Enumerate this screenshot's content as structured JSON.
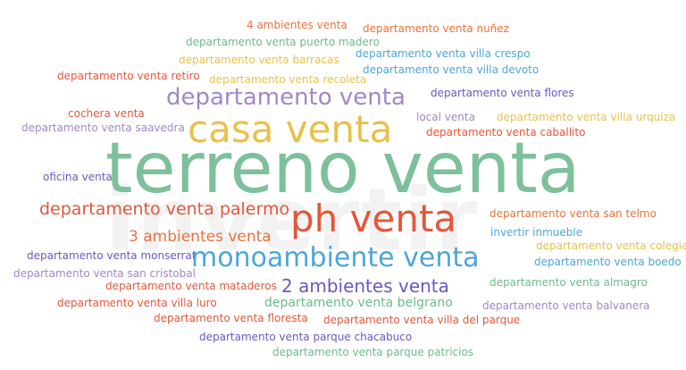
{
  "watermark_text": "invertir",
  "words": [
    {
      "text": "4 ambientes venta",
      "color": "#e8723a"
    },
    {
      "text": "departamento venta nuñez",
      "color": "#e8723a"
    },
    {
      "text": "departamento venta puerto madero",
      "color": "#6dbb8a"
    },
    {
      "text": "departamento venta villa crespo",
      "color": "#4da6d9"
    },
    {
      "text": "departamento venta barracas",
      "color": "#e8c14a"
    },
    {
      "text": "departamento venta villa devoto",
      "color": "#4da6d9"
    },
    {
      "text": "departamento venta retiro",
      "color": "#e3573a"
    },
    {
      "text": "departamento venta recoleta",
      "color": "#e8c14a"
    },
    {
      "text": "departamento venta",
      "color": "#a287c9"
    },
    {
      "text": "departamento venta flores",
      "color": "#6b57c7"
    },
    {
      "text": "cochera venta",
      "color": "#e3573a"
    },
    {
      "text": "casa venta",
      "color": "#e8c14a"
    },
    {
      "text": "local venta",
      "color": "#a287c9"
    },
    {
      "text": "departamento venta villa urquiza",
      "color": "#e8c14a"
    },
    {
      "text": "departamento venta saavedra",
      "color": "#a287c9"
    },
    {
      "text": "departamento venta caballito",
      "color": "#e3573a"
    },
    {
      "text": "terreno venta",
      "color": "#7dc09b"
    },
    {
      "text": "oficina venta",
      "color": "#6b57c7"
    },
    {
      "text": "departamento venta palermo",
      "color": "#e3573a"
    },
    {
      "text": "ph venta",
      "color": "#e3573a"
    },
    {
      "text": "departamento venta san telmo",
      "color": "#e8723a"
    },
    {
      "text": "3 ambientes venta",
      "color": "#e8723a"
    },
    {
      "text": "invertir inmueble",
      "color": "#4da6d9"
    },
    {
      "text": "departamento venta colegiales",
      "color": "#e8c14a"
    },
    {
      "text": "departamento venta monserrat",
      "color": "#6b57c7"
    },
    {
      "text": "monoambiente venta",
      "color": "#4da6d9"
    },
    {
      "text": "departamento venta boedo",
      "color": "#4da6d9"
    },
    {
      "text": "departamento venta san cristobal",
      "color": "#a287c9"
    },
    {
      "text": "departamento venta mataderos",
      "color": "#e3573a"
    },
    {
      "text": "2 ambientes venta",
      "color": "#6b57c7"
    },
    {
      "text": "departamento venta almagro",
      "color": "#6dbb8a"
    },
    {
      "text": "departamento venta villa luro",
      "color": "#e3573a"
    },
    {
      "text": "departamento venta belgrano",
      "color": "#6dbb8a"
    },
    {
      "text": "departamento venta balvanera",
      "color": "#a287c9"
    },
    {
      "text": "departamento venta floresta",
      "color": "#e3573a"
    },
    {
      "text": "departamento venta villa del parque",
      "color": "#e3573a"
    },
    {
      "text": "departamento venta parque chacabuco",
      "color": "#6b57c7"
    },
    {
      "text": "departamento venta parque patricios",
      "color": "#6dbb8a"
    }
  ]
}
